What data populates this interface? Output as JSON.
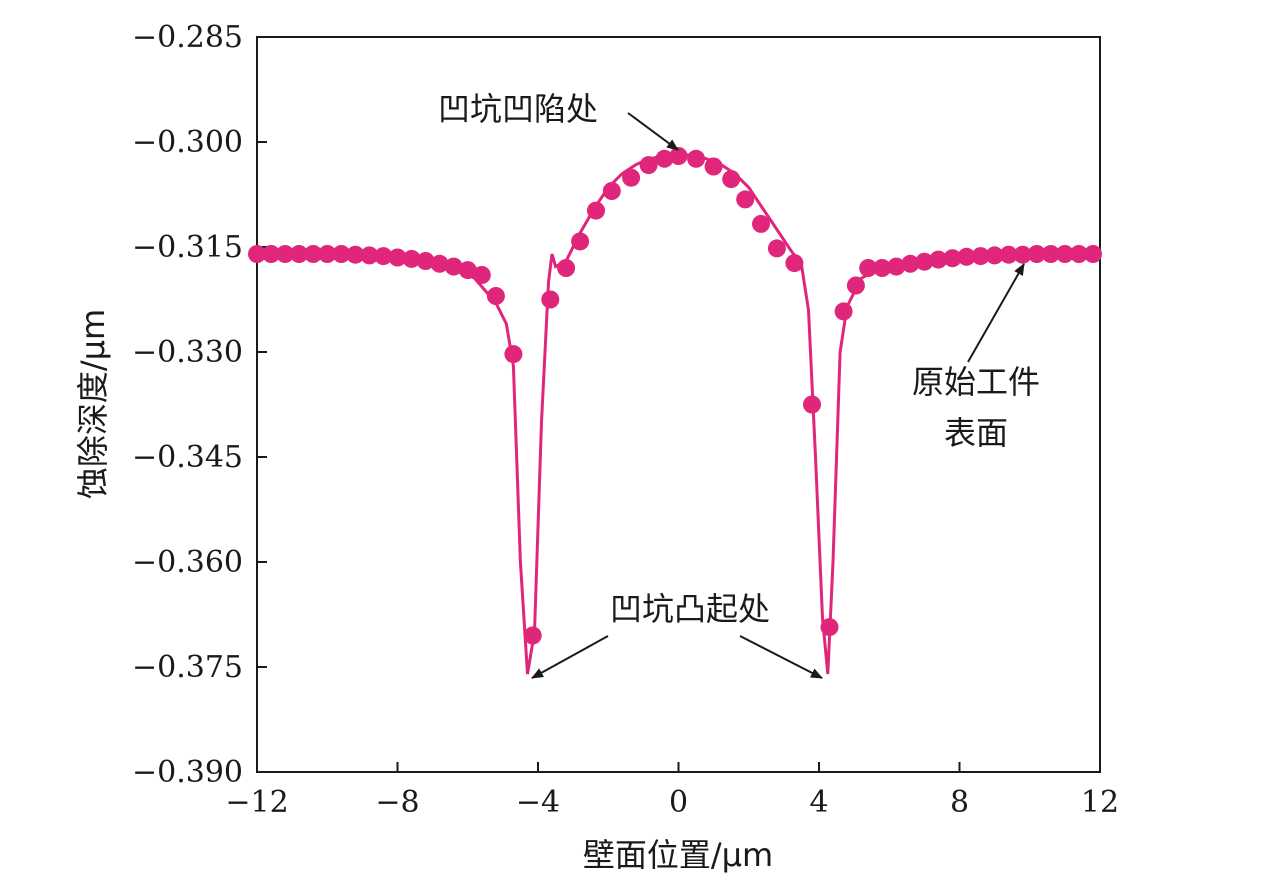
{
  "chart_data": {
    "type": "line",
    "xlabel": "壁面位置/μm",
    "ylabel": "蚀除深度/μm",
    "xlim": [
      -12,
      12
    ],
    "ylim": [
      -0.39,
      -0.285
    ],
    "x_ticks": [
      -12,
      -8,
      -4,
      0,
      4,
      8,
      12
    ],
    "x_tick_labels": [
      "−12",
      "−8",
      "−4",
      "0",
      "4",
      "8",
      "12"
    ],
    "y_ticks": [
      -0.285,
      -0.3,
      -0.315,
      -0.33,
      -0.345,
      -0.36,
      -0.375,
      -0.39
    ],
    "y_tick_labels": [
      "−0.285",
      "−0.300",
      "−0.315",
      "−0.330",
      "−0.345",
      "−0.360",
      "−0.375",
      "−0.390"
    ],
    "grid": false,
    "color": "#e0267a",
    "series": [
      {
        "name": "",
        "marker": "circle",
        "line": [
          [
            -12,
            -0.316
          ],
          [
            -10,
            -0.3162
          ],
          [
            -8,
            -0.3167
          ],
          [
            -6.5,
            -0.3175
          ],
          [
            -5.8,
            -0.3195
          ],
          [
            -5.2,
            -0.323
          ],
          [
            -4.9,
            -0.326
          ],
          [
            -4.7,
            -0.332
          ],
          [
            -4.5,
            -0.36
          ],
          [
            -4.3,
            -0.376
          ],
          [
            -4.1,
            -0.37
          ],
          [
            -3.9,
            -0.34
          ],
          [
            -3.7,
            -0.32
          ],
          [
            -3.6,
            -0.316
          ],
          [
            -3.5,
            -0.3178
          ],
          [
            -3.2,
            -0.317
          ],
          [
            -2.8,
            -0.313
          ],
          [
            -2.4,
            -0.3095
          ],
          [
            -2.0,
            -0.3065
          ],
          [
            -1.6,
            -0.3045
          ],
          [
            -1.2,
            -0.3032
          ],
          [
            -0.8,
            -0.3024
          ],
          [
            -0.4,
            -0.3019
          ],
          [
            0,
            -0.3017
          ],
          [
            0.4,
            -0.3019
          ],
          [
            0.8,
            -0.3024
          ],
          [
            1.2,
            -0.3032
          ],
          [
            1.6,
            -0.3045
          ],
          [
            2.0,
            -0.3065
          ],
          [
            2.4,
            -0.3095
          ],
          [
            2.8,
            -0.3125
          ],
          [
            3.2,
            -0.3155
          ],
          [
            3.5,
            -0.3175
          ],
          [
            3.7,
            -0.324
          ],
          [
            3.9,
            -0.345
          ],
          [
            4.1,
            -0.368
          ],
          [
            4.25,
            -0.376
          ],
          [
            4.4,
            -0.36
          ],
          [
            4.6,
            -0.33
          ],
          [
            4.8,
            -0.3235
          ],
          [
            5.2,
            -0.3195
          ],
          [
            5.8,
            -0.3178
          ],
          [
            7,
            -0.3168
          ],
          [
            8.5,
            -0.3162
          ],
          [
            12,
            -0.316
          ]
        ],
        "points": [
          [
            -12,
            -0.316
          ],
          [
            -11.6,
            -0.316
          ],
          [
            -11.2,
            -0.316
          ],
          [
            -10.8,
            -0.316
          ],
          [
            -10.4,
            -0.316
          ],
          [
            -10.0,
            -0.316
          ],
          [
            -9.6,
            -0.316
          ],
          [
            -9.2,
            -0.3161
          ],
          [
            -8.8,
            -0.3162
          ],
          [
            -8.4,
            -0.3163
          ],
          [
            -8.0,
            -0.3165
          ],
          [
            -7.6,
            -0.3167
          ],
          [
            -7.2,
            -0.317
          ],
          [
            -6.8,
            -0.3174
          ],
          [
            -6.4,
            -0.3178
          ],
          [
            -6.0,
            -0.3183
          ],
          [
            -5.6,
            -0.319
          ],
          [
            -5.2,
            -0.322
          ],
          [
            -4.7,
            -0.3303
          ],
          [
            -4.15,
            -0.3705
          ],
          [
            -3.65,
            -0.3225
          ],
          [
            -3.2,
            -0.318
          ],
          [
            -2.8,
            -0.3142
          ],
          [
            -2.35,
            -0.3098
          ],
          [
            -1.9,
            -0.307
          ],
          [
            -1.35,
            -0.3051
          ],
          [
            -0.85,
            -0.3033
          ],
          [
            -0.4,
            -0.3024
          ],
          [
            0,
            -0.302
          ],
          [
            0.5,
            -0.3024
          ],
          [
            1.0,
            -0.3035
          ],
          [
            1.5,
            -0.3053
          ],
          [
            1.9,
            -0.3082
          ],
          [
            2.35,
            -0.3117
          ],
          [
            2.8,
            -0.3152
          ],
          [
            3.3,
            -0.3173
          ],
          [
            3.8,
            -0.3375
          ],
          [
            4.3,
            -0.3693
          ],
          [
            4.7,
            -0.3242
          ],
          [
            5.05,
            -0.3205
          ],
          [
            5.4,
            -0.318
          ],
          [
            5.8,
            -0.318
          ],
          [
            6.2,
            -0.3178
          ],
          [
            6.6,
            -0.3174
          ],
          [
            7.0,
            -0.3171
          ],
          [
            7.4,
            -0.3168
          ],
          [
            7.8,
            -0.3166
          ],
          [
            8.2,
            -0.3164
          ],
          [
            8.6,
            -0.3163
          ],
          [
            9.0,
            -0.3162
          ],
          [
            9.4,
            -0.3161
          ],
          [
            9.8,
            -0.3161
          ],
          [
            10.2,
            -0.316
          ],
          [
            10.6,
            -0.316
          ],
          [
            11.0,
            -0.316
          ],
          [
            11.4,
            -0.316
          ],
          [
            11.8,
            -0.316
          ]
        ]
      }
    ],
    "annotations": [
      {
        "text": "凹坑凹陷处",
        "target": [
          0,
          -0.3017
        ]
      },
      {
        "text": "凹坑凸起处",
        "target": [
          -4.3,
          -0.376
        ]
      },
      {
        "text": "",
        "target": [
          4.25,
          -0.376
        ]
      },
      {
        "text": "原始工件",
        "target": [
          10.0,
          -0.3162
        ]
      },
      {
        "text": "表面",
        "target": null
      }
    ]
  }
}
